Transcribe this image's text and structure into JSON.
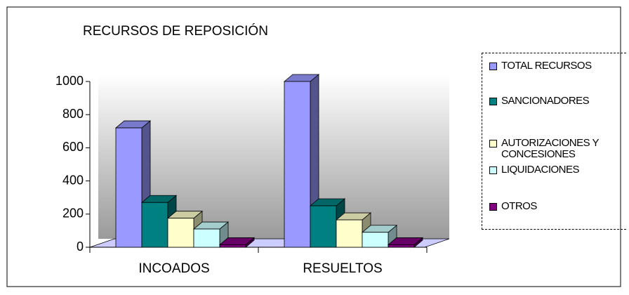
{
  "chart_data": {
    "type": "bar3d",
    "title": "RECURSOS DE REPOSICIÓN",
    "categories": [
      "INCOADOS",
      "RESUELTOS"
    ],
    "series": [
      {
        "name": "TOTAL RECURSOS",
        "color": "#9999ff",
        "values": [
          720,
          1000
        ]
      },
      {
        "name": "SANCIONADORES",
        "color": "#008080",
        "values": [
          270,
          250
        ]
      },
      {
        "name": "AUTORIZACIONES Y CONCESIONES",
        "color": "#ffffcc",
        "values": [
          175,
          165
        ]
      },
      {
        "name": "LIQUIDACIONES",
        "color": "#ccffff",
        "values": [
          110,
          90
        ]
      },
      {
        "name": "OTROS",
        "color": "#800080",
        "values": [
          15,
          15
        ]
      }
    ],
    "ylim": [
      0,
      1000
    ],
    "yticks": [
      0,
      200,
      400,
      600,
      800,
      1000
    ],
    "legend": "right"
  }
}
